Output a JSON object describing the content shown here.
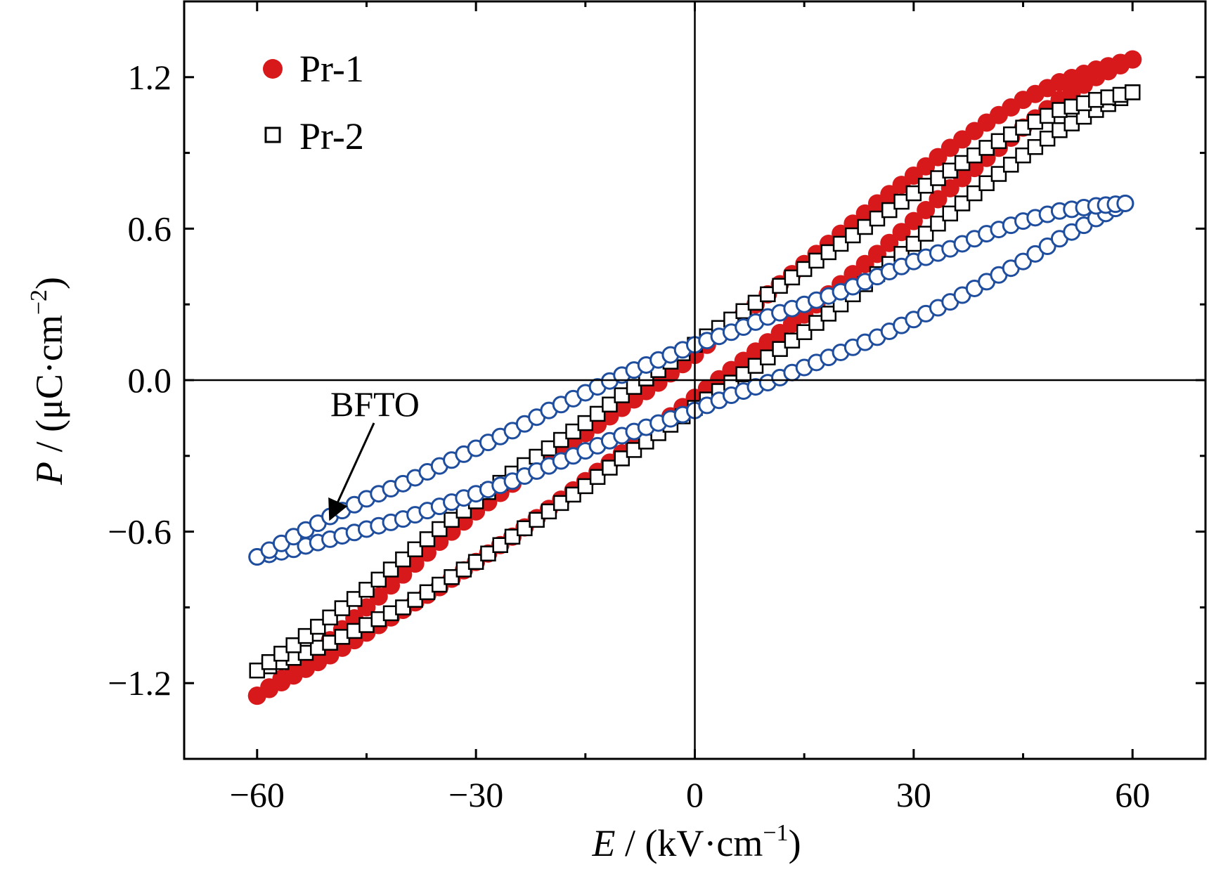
{
  "chart_data": {
    "type": "scatter",
    "title": "",
    "xlabel": {
      "var": "E",
      "unit": " / (kV·cm",
      "exp": "−1",
      "close": ")"
    },
    "ylabel": {
      "var": "P",
      "unit": " / (μC·cm",
      "exp": "−2",
      "close": ")"
    },
    "xlim": [
      -70,
      70
    ],
    "ylim": [
      -1.5,
      1.5
    ],
    "xticks": [
      {
        "value": -60,
        "label": "−60"
      },
      {
        "value": -30,
        "label": "−30"
      },
      {
        "value": 0,
        "label": "0"
      },
      {
        "value": 30,
        "label": "30"
      },
      {
        "value": 60,
        "label": "60"
      }
    ],
    "xminor_ticks": [
      -45,
      -15,
      15,
      45
    ],
    "yticks": [
      {
        "value": 1.2,
        "label": "1.2"
      },
      {
        "value": 0.6,
        "label": "0.6"
      },
      {
        "value": 0.0,
        "label": "0.0"
      },
      {
        "value": -0.6,
        "label": "−0.6"
      },
      {
        "value": -1.2,
        "label": "−1.2"
      }
    ],
    "yminor_ticks": [
      0.9,
      0.3,
      -0.3,
      -0.9
    ],
    "zero_lines": true,
    "legend_position": "top-left",
    "series": [
      {
        "name": "Pr-1",
        "marker": "filled-circle",
        "color": "#d7191c",
        "branches": [
          {
            "x": [
              -60,
              -55,
              -50,
              -45,
              -40,
              -35,
              -30,
              -25,
              -20,
              -15,
              -10,
              -5,
              0,
              5,
              10,
              15,
              20,
              25,
              30,
              35,
              40,
              45,
              50,
              55,
              60
            ],
            "y": [
              -1.25,
              -1.17,
              -1.09,
              -1.0,
              -0.91,
              -0.82,
              -0.72,
              -0.62,
              -0.51,
              -0.4,
              -0.29,
              -0.18,
              -0.07,
              0.04,
              0.15,
              0.26,
              0.38,
              0.5,
              0.63,
              0.76,
              0.88,
              1.0,
              1.11,
              1.2,
              1.27
            ]
          },
          {
            "x": [
              -60,
              -55,
              -50,
              -45,
              -40,
              -35,
              -30,
              -25,
              -20,
              -15,
              -10,
              -5,
              0,
              5,
              10,
              15,
              20,
              25,
              30,
              35,
              40,
              45,
              50,
              55,
              60
            ],
            "y": [
              -1.25,
              -1.15,
              -1.03,
              -0.9,
              -0.77,
              -0.64,
              -0.52,
              -0.41,
              -0.31,
              -0.21,
              -0.11,
              -0.01,
              0.1,
              0.22,
              0.34,
              0.46,
              0.58,
              0.7,
              0.81,
              0.92,
              1.02,
              1.11,
              1.18,
              1.23,
              1.27
            ]
          }
        ]
      },
      {
        "name": "Pr-2",
        "marker": "open-square",
        "color": "#000000",
        "branches": [
          {
            "x": [
              -60,
              -55,
              -50,
              -45,
              -40,
              -35,
              -30,
              -25,
              -20,
              -15,
              -10,
              -5,
              0,
              5,
              10,
              15,
              20,
              25,
              30,
              35,
              40,
              45,
              50,
              55,
              60
            ],
            "y": [
              -1.15,
              -1.1,
              -1.04,
              -0.97,
              -0.9,
              -0.81,
              -0.72,
              -0.62,
              -0.52,
              -0.42,
              -0.31,
              -0.21,
              -0.11,
              -0.01,
              0.09,
              0.19,
              0.3,
              0.42,
              0.54,
              0.66,
              0.78,
              0.89,
              0.99,
              1.07,
              1.14
            ]
          },
          {
            "x": [
              -60,
              -55,
              -50,
              -45,
              -40,
              -35,
              -30,
              -25,
              -20,
              -15,
              -10,
              -5,
              0,
              5,
              10,
              15,
              20,
              25,
              30,
              35,
              40,
              45,
              50,
              55,
              60
            ],
            "y": [
              -1.15,
              -1.05,
              -0.94,
              -0.83,
              -0.71,
              -0.59,
              -0.48,
              -0.37,
              -0.27,
              -0.17,
              -0.06,
              0.04,
              0.14,
              0.24,
              0.34,
              0.44,
              0.54,
              0.64,
              0.74,
              0.83,
              0.92,
              1.0,
              1.07,
              1.11,
              1.14
            ]
          }
        ]
      },
      {
        "name": "BFTO",
        "marker": "open-circle",
        "color": "#1f4e9e",
        "branches": [
          {
            "x": [
              -60,
              -55,
              -50,
              -45,
              -40,
              -35,
              -30,
              -25,
              -20,
              -15,
              -10,
              -5,
              0,
              5,
              10,
              15,
              20,
              25,
              30,
              35,
              40,
              45,
              50,
              55,
              59
            ],
            "y": [
              -0.7,
              -0.67,
              -0.63,
              -0.59,
              -0.55,
              -0.5,
              -0.45,
              -0.4,
              -0.34,
              -0.28,
              -0.22,
              -0.17,
              -0.12,
              -0.06,
              -0.01,
              0.05,
              0.11,
              0.17,
              0.24,
              0.31,
              0.39,
              0.47,
              0.56,
              0.64,
              0.7
            ]
          },
          {
            "x": [
              -60,
              -55,
              -50,
              -45,
              -40,
              -35,
              -30,
              -25,
              -20,
              -15,
              -10,
              -5,
              0,
              5,
              10,
              15,
              20,
              25,
              30,
              35,
              40,
              45,
              50,
              55,
              59
            ],
            "y": [
              -0.7,
              -0.62,
              -0.54,
              -0.47,
              -0.41,
              -0.34,
              -0.27,
              -0.2,
              -0.12,
              -0.05,
              0.02,
              0.08,
              0.14,
              0.19,
              0.25,
              0.3,
              0.35,
              0.41,
              0.47,
              0.52,
              0.58,
              0.63,
              0.67,
              0.69,
              0.7
            ]
          }
        ]
      }
    ],
    "annotations": [
      {
        "text": "BFTO",
        "arrow_to": {
          "x": -50,
          "y": -0.55
        }
      }
    ]
  }
}
